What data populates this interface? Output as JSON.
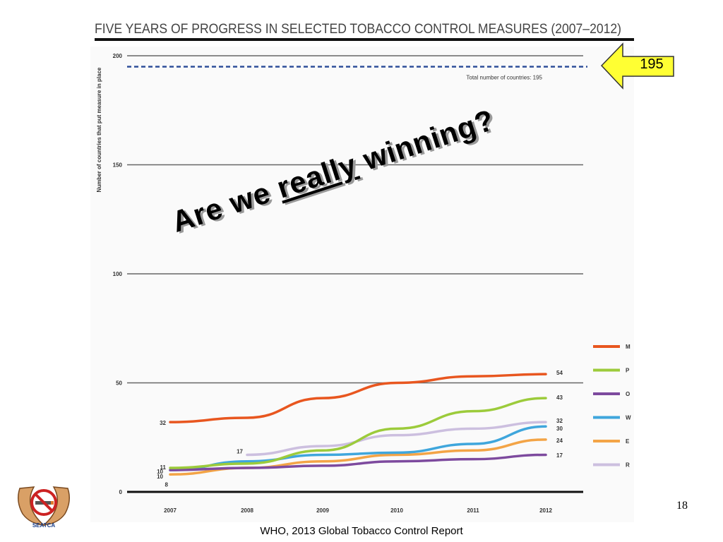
{
  "slide": {
    "overlay": {
      "part1": "Are we ",
      "part2": "really",
      "part3": " winning?"
    },
    "callout_value": "195",
    "slide_number": "18",
    "source": "WHO, 2013 Global Tobacco Control Report",
    "logo_label": "SEATCA"
  },
  "chart_data": {
    "type": "line",
    "title": "FIVE YEARS OF PROGRESS IN SELECTED TOBACCO CONTROL MEASURES (2007–2012)",
    "ylabel": "Number of countries that put measure in place",
    "xlabel": "",
    "categories": [
      "2007",
      "2008",
      "2009",
      "2010",
      "2011",
      "2012"
    ],
    "ylim": [
      0,
      200
    ],
    "yticks": [
      0,
      50,
      100,
      150,
      200
    ],
    "reference_line": {
      "value": 195,
      "label": "Total number of countries: 195"
    },
    "legend_position": "right",
    "series": [
      {
        "name": "M",
        "color": "#e8561f",
        "values": [
          32,
          34,
          43,
          50,
          53,
          54
        ]
      },
      {
        "name": "P",
        "color": "#9ccb3b",
        "values": [
          11,
          13,
          19,
          29,
          37,
          43
        ]
      },
      {
        "name": "O",
        "color": "#7d4a9e",
        "values": [
          10,
          11,
          12,
          14,
          15,
          17
        ]
      },
      {
        "name": "W",
        "color": "#3fa6dc",
        "values": [
          10,
          14,
          17,
          18,
          22,
          30
        ]
      },
      {
        "name": "E",
        "color": "#f3a446",
        "values": [
          8,
          11,
          14,
          17,
          19,
          24
        ]
      },
      {
        "name": "R",
        "color": "#ccbfdf",
        "values": [
          null,
          17,
          21,
          26,
          29,
          32
        ]
      }
    ],
    "start_labels": [
      {
        "series": "M",
        "text": "32"
      },
      {
        "series": "P",
        "text": "11"
      },
      {
        "series": "O",
        "text": "10"
      },
      {
        "series": "W",
        "text": "10"
      },
      {
        "series": "E",
        "text": "8"
      },
      {
        "series": "R",
        "text": "17"
      }
    ],
    "end_labels": [
      {
        "series": "M",
        "text": "54"
      },
      {
        "series": "P",
        "text": "43"
      },
      {
        "series": "R",
        "text": "32"
      },
      {
        "series": "W",
        "text": "30"
      },
      {
        "series": "E",
        "text": "24"
      },
      {
        "series": "O",
        "text": "17"
      }
    ]
  }
}
